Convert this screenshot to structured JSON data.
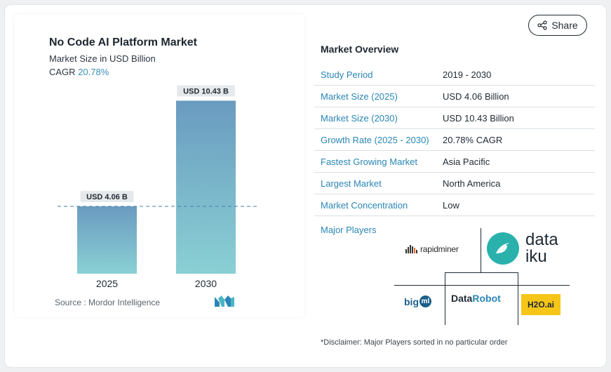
{
  "share": {
    "label": "Share",
    "icon": "share-icon"
  },
  "chart_data": {
    "type": "bar",
    "title": "No Code AI Platform Market",
    "subtitle": "Market Size in USD Billion",
    "cagr_label": "CAGR",
    "cagr_value": "20.78%",
    "categories": [
      "2025",
      "2030"
    ],
    "values": [
      4.06,
      10.43
    ],
    "data_labels": [
      "USD 4.06 B",
      "USD 10.43 B"
    ],
    "ylim": [
      0,
      11
    ],
    "grid": false,
    "reference_line": {
      "value": 4.06,
      "style": "dashed"
    },
    "colors": {
      "bar_top": "#6a9bc0",
      "bar_bottom": "#8ad0d4",
      "label_bg": "#e6e9ec",
      "dashed_line": "#3f7fae"
    }
  },
  "source": {
    "text": "Source : Mordor Intelligence",
    "logo": "mordor-intelligence-logo"
  },
  "overview": {
    "title": "Market Overview",
    "rows": [
      {
        "key": "Study Period",
        "value": "2019 - 2030"
      },
      {
        "key": "Market Size (2025)",
        "value": "USD 4.06 Billion"
      },
      {
        "key": "Market Size (2030)",
        "value": "USD 10.43 Billion"
      },
      {
        "key": "Growth Rate (2025 - 2030)",
        "value": "20.78% CAGR"
      },
      {
        "key": "Fastest Growing Market",
        "value": "Asia Pacific"
      },
      {
        "key": "Largest Market",
        "value": "North America"
      },
      {
        "key": "Market Concentration",
        "value": "Low"
      }
    ]
  },
  "players": {
    "label": "Major Players",
    "rapidminer": "rapidminer",
    "dataiku": "data\niku",
    "bigml_big": "big",
    "bigml_ml": "ml",
    "datarobot_a": "Data",
    "datarobot_b": "Robot",
    "h2o": "H2O.ai"
  },
  "disclaimer": "*Disclaimer: Major Players sorted in no particular order"
}
